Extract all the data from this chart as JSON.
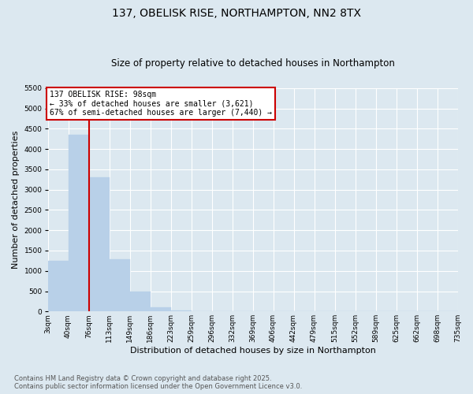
{
  "title": "137, OBELISK RISE, NORTHAMPTON, NN2 8TX",
  "subtitle": "Size of property relative to detached houses in Northampton",
  "xlabel": "Distribution of detached houses by size in Northampton",
  "ylabel": "Number of detached properties",
  "background_color": "#dce8f0",
  "plot_bg_color": "#dce8f0",
  "bar_color": "#b8d0e8",
  "bar_edgecolor": "#b8d0e8",
  "grid_color": "#ffffff",
  "vline_color": "#cc0000",
  "annotation_text": "137 OBELISK RISE: 98sqm\n← 33% of detached houses are smaller (3,621)\n67% of semi-detached houses are larger (7,440) →",
  "annotation_box_facecolor": "#ffffff",
  "annotation_box_edgecolor": "#cc0000",
  "categories": [
    "3sqm",
    "40sqm",
    "76sqm",
    "113sqm",
    "149sqm",
    "186sqm",
    "223sqm",
    "259sqm",
    "296sqm",
    "332sqm",
    "369sqm",
    "406sqm",
    "442sqm",
    "479sqm",
    "515sqm",
    "552sqm",
    "589sqm",
    "625sqm",
    "662sqm",
    "698sqm",
    "735sqm"
  ],
  "bar_values": [
    1250,
    4350,
    3300,
    1280,
    490,
    100,
    30,
    10,
    5,
    2,
    1,
    0,
    0,
    0,
    0,
    0,
    0,
    0,
    0,
    0
  ],
  "vline_bar_index": 2,
  "ylim": [
    0,
    5500
  ],
  "yticks": [
    0,
    500,
    1000,
    1500,
    2000,
    2500,
    3000,
    3500,
    4000,
    4500,
    5000,
    5500
  ],
  "footnote": "Contains HM Land Registry data © Crown copyright and database right 2025.\nContains public sector information licensed under the Open Government Licence v3.0.",
  "title_fontsize": 10,
  "subtitle_fontsize": 8.5,
  "xlabel_fontsize": 8,
  "ylabel_fontsize": 8,
  "tick_fontsize": 6.5,
  "annotation_fontsize": 7,
  "footnote_fontsize": 6
}
